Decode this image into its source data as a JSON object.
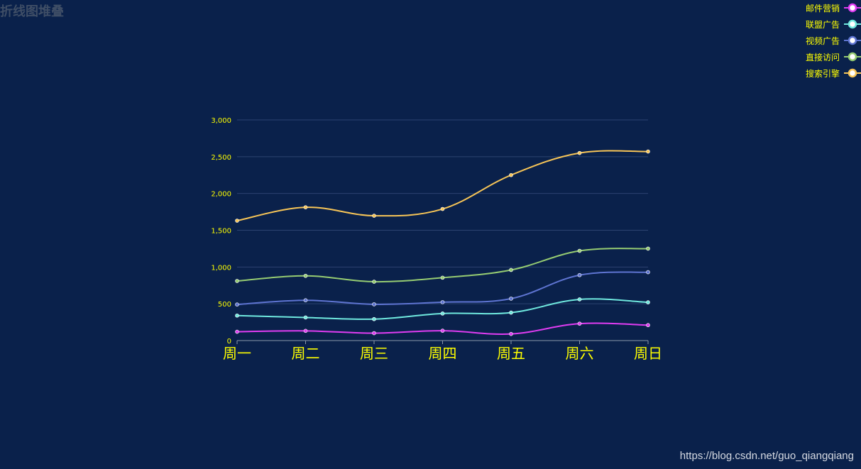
{
  "chart_data": {
    "type": "line",
    "title": "折线图堆叠",
    "stacked": true,
    "smooth": true,
    "categories": [
      "周一",
      "周二",
      "周三",
      "周四",
      "周五",
      "周六",
      "周日"
    ],
    "ylim": [
      0,
      3000
    ],
    "yticks": [
      "0",
      "500",
      "1,000",
      "1,500",
      "2,000",
      "2,500",
      "3,000"
    ],
    "ytick_values": [
      0,
      500,
      1000,
      1500,
      2000,
      2500,
      3000
    ],
    "legend_position": "top-right",
    "series": [
      {
        "name": "邮件营销",
        "color": "#e03cf2",
        "values": [
          120,
          132,
          101,
          134,
          90,
          230,
          210
        ]
      },
      {
        "name": "联盟广告",
        "color": "#6fe8de",
        "values": [
          340,
          314,
          292,
          368,
          380,
          560,
          520
        ]
      },
      {
        "name": "视频广告",
        "color": "#5e74d1",
        "values": [
          490,
          548,
          493,
          522,
          570,
          890,
          930
        ]
      },
      {
        "name": "直接访问",
        "color": "#96cc72",
        "values": [
          810,
          880,
          800,
          855,
          960,
          1220,
          1250
        ]
      },
      {
        "name": "搜索引擎",
        "color": "#f7c557",
        "values": [
          1630,
          1812,
          1697,
          1789,
          2250,
          2550,
          2570
        ]
      }
    ]
  },
  "watermark": "https://blog.csdn.net/guo_qiangqiang"
}
